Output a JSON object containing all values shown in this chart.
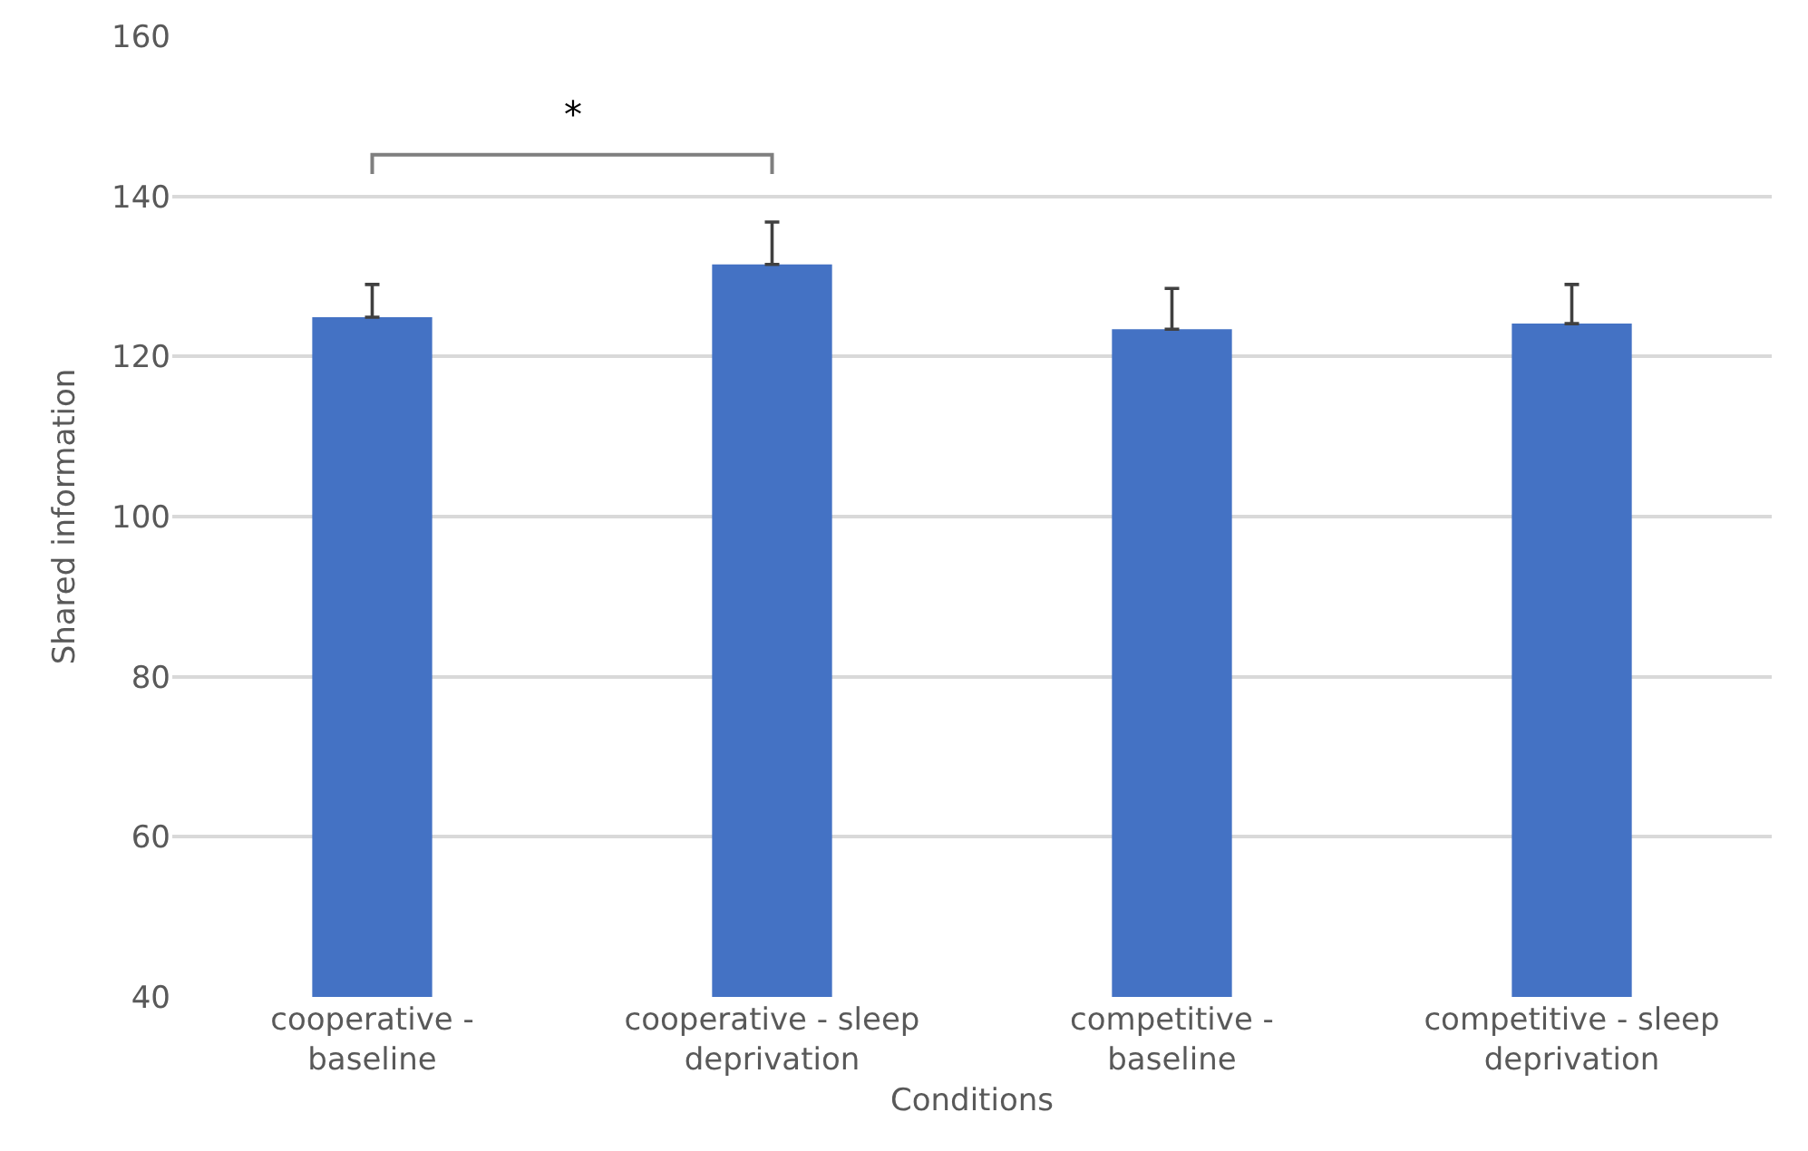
{
  "chart_data": {
    "type": "bar",
    "xlabel": "Conditions",
    "ylabel": "Shared information",
    "categories": [
      "cooperative - baseline",
      "cooperative - sleep deprivation",
      "competitive - baseline",
      "competitive - sleep deprivation"
    ],
    "values": [
      124.9,
      131.5,
      123.4,
      124.1
    ],
    "errors": [
      [
        124.9,
        129.0
      ],
      [
        131.5,
        136.8
      ],
      [
        123.4,
        128.5
      ],
      [
        124.1,
        129.0
      ]
    ],
    "color": "#4472c4",
    "ylim": [
      40,
      160
    ],
    "yticks": [
      40,
      60,
      80,
      100,
      120,
      140,
      160
    ],
    "grid": "y",
    "annotations": [
      "*"
    ]
  }
}
